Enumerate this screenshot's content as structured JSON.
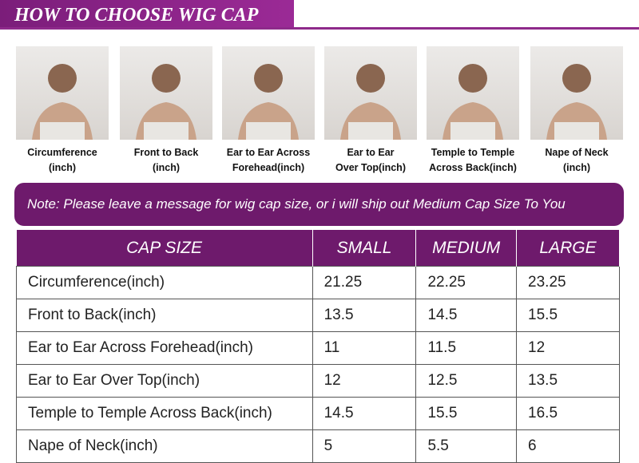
{
  "header": {
    "title": "HOW TO CHOOSE WIG CAP"
  },
  "photos": [
    {
      "caption": [
        "Circumference",
        "(inch)"
      ]
    },
    {
      "caption": [
        "Front to Back",
        "(inch)"
      ]
    },
    {
      "caption": [
        "Ear to Ear Across",
        "Forehead(inch)"
      ]
    },
    {
      "caption": [
        "Ear to Ear",
        "Over Top(inch)"
      ]
    },
    {
      "caption": [
        "Temple to Temple",
        "Across Back(inch)"
      ]
    },
    {
      "caption": [
        "Nape of Neck",
        "(inch)"
      ]
    }
  ],
  "note": "Note: Please leave a message for wig cap size, or i will ship out Medium Cap Size To You",
  "table": {
    "header": [
      "CAP SIZE",
      "SMALL",
      "MEDIUM",
      "LARGE"
    ],
    "rows": [
      [
        "Circumference(inch)",
        21.25,
        22.25,
        23.25
      ],
      [
        "Front to Back(inch)",
        13.5,
        14.5,
        15.5
      ],
      [
        "Ear to Ear Across Forehead(inch)",
        11,
        11.5,
        12
      ],
      [
        "Ear to Ear Over Top(inch)",
        12,
        12.5,
        13.5
      ],
      [
        "Temple to Temple Across Back(inch)",
        14.5,
        15.5,
        16.5
      ],
      [
        "Nape of Neck(inch)",
        5,
        5.5,
        6
      ]
    ]
  }
}
